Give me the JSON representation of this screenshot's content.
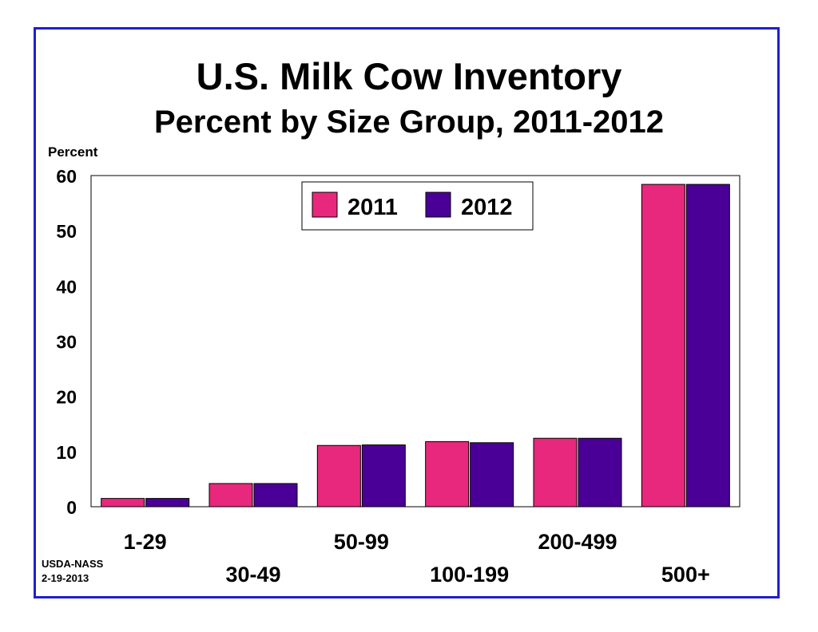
{
  "chart_data": {
    "type": "bar",
    "title": "U.S. Milk Cow Inventory",
    "subtitle": "Percent by Size Group, 2011-2012",
    "ylabel": "Percent",
    "xlabel": "",
    "ylim": [
      0,
      60
    ],
    "yticks": [
      "0",
      "10",
      "20",
      "30",
      "40",
      "50",
      "60"
    ],
    "categories": [
      "1-29",
      "30-49",
      "50-99",
      "100-199",
      "200-499",
      "500+"
    ],
    "series": [
      {
        "name": "2011",
        "color": "#e8287c",
        "values": [
          1.5,
          4.2,
          11.1,
          11.8,
          12.4,
          58.4
        ]
      },
      {
        "name": "2012",
        "color": "#4a0096",
        "values": [
          1.5,
          4.2,
          11.2,
          11.6,
          12.4,
          58.4
        ]
      }
    ],
    "grid": false,
    "legend": "top-center"
  },
  "source": {
    "line1": "USDA-NASS",
    "line2": "2-19-2013"
  }
}
